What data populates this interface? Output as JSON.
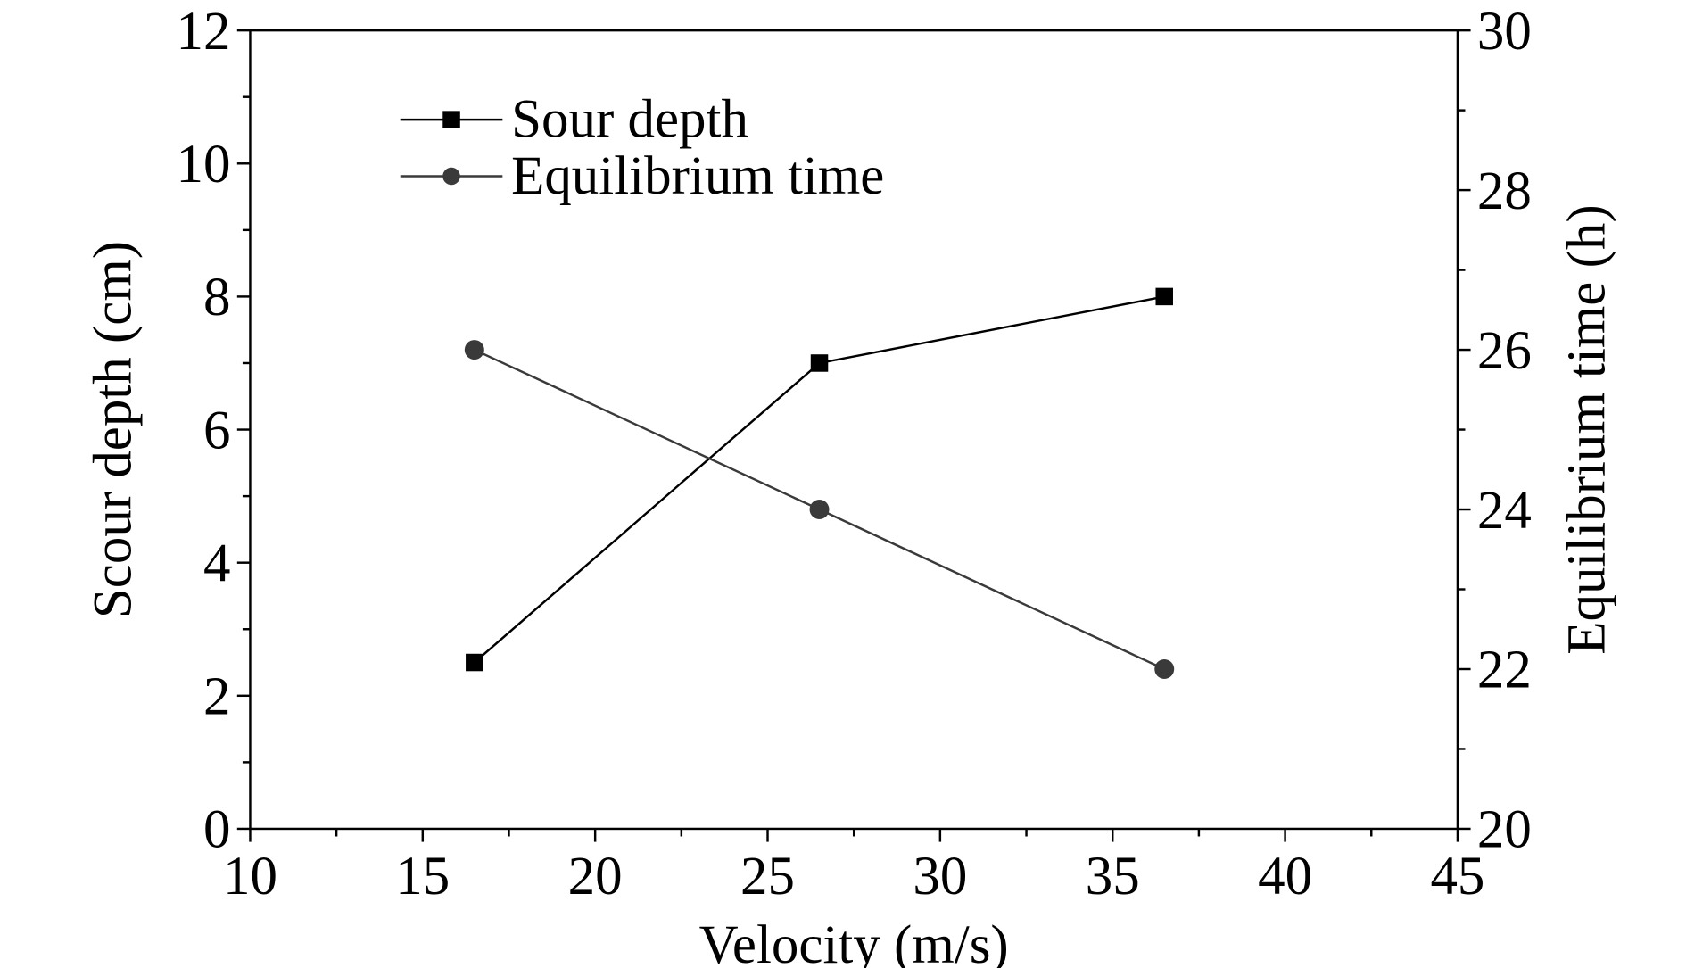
{
  "chart_data": {
    "type": "line",
    "title": "",
    "xlabel": "Velocity (m/s)",
    "ylabel": "Scour depth (cm)",
    "y2label": "Equilibrium time (h)",
    "xlim": [
      10,
      45
    ],
    "ylim": [
      0,
      12
    ],
    "y2lim": [
      20,
      30
    ],
    "xticks": [
      10,
      15,
      20,
      25,
      30,
      35,
      40,
      45
    ],
    "yticks": [
      0,
      2,
      4,
      6,
      8,
      10,
      12
    ],
    "y2ticks": [
      20,
      22,
      24,
      26,
      28,
      30
    ],
    "grid": false,
    "legend_position": "top-left",
    "series": [
      {
        "name": "Sour depth",
        "axis": "left",
        "marker": "square",
        "color": "#000000",
        "x": [
          16.5,
          26.5,
          36.5
        ],
        "values": [
          2.5,
          7,
          8
        ]
      },
      {
        "name": "Equilibrium time",
        "axis": "right",
        "marker": "circle",
        "color": "#3a3a3a",
        "x": [
          16.5,
          26.5,
          36.5
        ],
        "values": [
          26,
          24,
          22
        ]
      }
    ]
  }
}
